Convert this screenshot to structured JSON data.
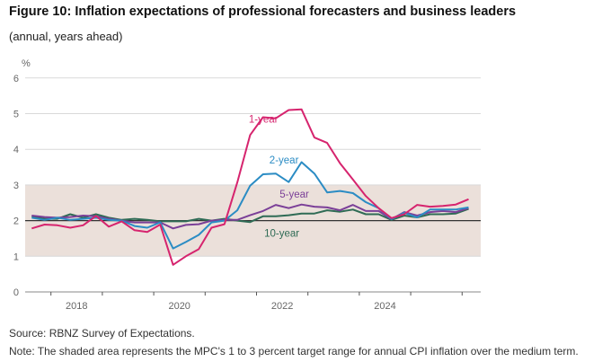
{
  "header": {
    "title": "Figure 10: Inflation expectations of professional forecasters and business leaders",
    "subtitle": "(annual, years ahead)"
  },
  "footer": {
    "source": "Source: RBNZ Survey of Expectations.",
    "note": "Note: The shaded area represents the MPC's 1 to 3 percent target range for annual CPI inflation over the medium term."
  },
  "chart_data": {
    "type": "line",
    "title": "Inflation expectations of professional forecasters and business leaders",
    "xlabel": "",
    "ylabel": "%",
    "ylim": [
      0,
      6
    ],
    "yticks": [
      "0",
      "1",
      "2",
      "3",
      "4",
      "5",
      "6"
    ],
    "xlim": [
      2018,
      2026.3
    ],
    "xtick_boundaries": [
      2018,
      2019,
      2020,
      2021,
      2022,
      2023,
      2024,
      2025,
      2026
    ],
    "xtick_labels": [
      {
        "label": "2018",
        "at": 2018.5
      },
      {
        "label": "2020",
        "at": 2020.5
      },
      {
        "label": "2022",
        "at": 2022.5
      },
      {
        "label": "2024",
        "at": 2024.5
      }
    ],
    "grid": true,
    "shaded_band": {
      "from": 1,
      "to": 3,
      "color": "#ebe0da",
      "description": "MPC target range"
    },
    "reference_line": 2,
    "x_start": 2017.625,
    "x_step": 0.25,
    "series": [
      {
        "name": "1-year",
        "color": "#d6246e",
        "values": [
          1.78,
          1.89,
          1.87,
          1.8,
          1.87,
          2.13,
          1.83,
          1.98,
          1.73,
          1.68,
          1.89,
          0.76,
          1.0,
          1.2,
          1.8,
          1.9,
          3.07,
          4.4,
          4.9,
          4.87,
          5.1,
          5.12,
          4.33,
          4.18,
          3.61,
          3.15,
          2.69,
          2.35,
          2.07,
          2.18,
          2.44,
          2.39,
          2.41,
          2.45,
          2.6
        ]
      },
      {
        "name": "2-year",
        "color": "#2b8cc4",
        "values": [
          2.08,
          2.02,
          2.08,
          2.02,
          2.05,
          2.08,
          2.02,
          2.0,
          1.85,
          1.8,
          1.95,
          1.22,
          1.4,
          1.6,
          1.95,
          2.0,
          2.29,
          2.98,
          3.3,
          3.32,
          3.08,
          3.64,
          3.32,
          2.79,
          2.83,
          2.77,
          2.52,
          2.35,
          2.04,
          2.22,
          2.09,
          2.31,
          2.31,
          2.31,
          2.37
        ]
      },
      {
        "name": "5-year",
        "color": "#7b3f98",
        "values": [
          2.14,
          2.1,
          2.08,
          2.1,
          2.14,
          2.12,
          2.05,
          2.0,
          1.95,
          1.95,
          1.95,
          1.78,
          1.88,
          1.9,
          2.0,
          2.02,
          2.02,
          2.15,
          2.27,
          2.44,
          2.35,
          2.45,
          2.39,
          2.37,
          2.29,
          2.44,
          2.27,
          2.27,
          2.04,
          2.24,
          2.14,
          2.24,
          2.27,
          2.24,
          2.35
        ]
      },
      {
        "name": "10-year",
        "color": "#2f6b55",
        "values": [
          2.12,
          2.05,
          2.05,
          2.18,
          2.08,
          2.18,
          2.08,
          2.02,
          2.05,
          2.02,
          1.98,
          1.98,
          1.98,
          2.05,
          2.0,
          2.05,
          2.0,
          1.96,
          2.12,
          2.12,
          2.15,
          2.2,
          2.2,
          2.29,
          2.25,
          2.31,
          2.18,
          2.18,
          2.02,
          2.14,
          2.09,
          2.18,
          2.18,
          2.2,
          2.33
        ]
      }
    ],
    "annotations": [
      {
        "text": "1-year",
        "series": "1-year"
      },
      {
        "text": "2-year",
        "series": "2-year"
      },
      {
        "text": "5-year",
        "series": "5-year"
      },
      {
        "text": "10-year",
        "series": "10-year"
      }
    ]
  }
}
